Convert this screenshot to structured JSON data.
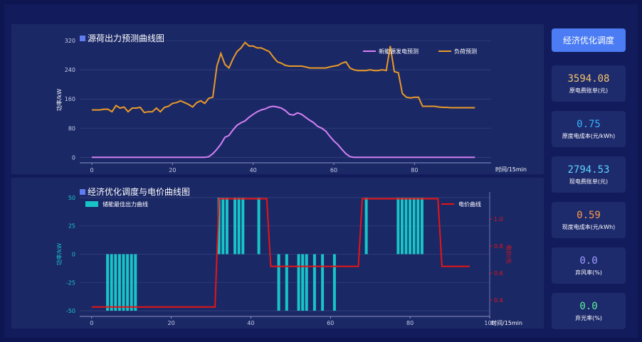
{
  "chart_data": [
    {
      "type": "line",
      "title": "源荷出力预测曲线图",
      "xlabel": "时间/15min",
      "ylabel": "功率/kW",
      "xlim": [
        -3,
        99
      ],
      "ylim": [
        -15,
        330
      ],
      "xticks": [
        0,
        20,
        40,
        60,
        80
      ],
      "yticks": [
        0,
        80,
        160,
        240,
        320
      ],
      "grid": true,
      "legend_position": "top-right",
      "series": [
        {
          "name": "新能源发电预测",
          "color": "#d580f5",
          "values": [
            0,
            0,
            0,
            0,
            0,
            0,
            0,
            0,
            0,
            0,
            0,
            0,
            0,
            0,
            0,
            0,
            0,
            0,
            0,
            0,
            0,
            0,
            0,
            0,
            0,
            0,
            0,
            0,
            0,
            2,
            10,
            22,
            36,
            55,
            60,
            75,
            88,
            95,
            100,
            110,
            118,
            125,
            130,
            133,
            138,
            140,
            138,
            135,
            128,
            118,
            116,
            122,
            118,
            110,
            102,
            95,
            85,
            80,
            72,
            58,
            45,
            35,
            22,
            10,
            2,
            0,
            0,
            0,
            0,
            0,
            0,
            0,
            0,
            0,
            0,
            0,
            0,
            0,
            0,
            0,
            0,
            0,
            0,
            0,
            0,
            0,
            0,
            0,
            0,
            0,
            0,
            0,
            0,
            0,
            0,
            0
          ]
        },
        {
          "name": "负荷预测",
          "color": "#ea9a27",
          "values": [
            130,
            130,
            130,
            132,
            132,
            125,
            142,
            135,
            138,
            125,
            135,
            135,
            137,
            123,
            125,
            125,
            135,
            125,
            137,
            140,
            148,
            150,
            155,
            150,
            145,
            138,
            150,
            155,
            148,
            162,
            165,
            250,
            285,
            255,
            245,
            270,
            290,
            300,
            315,
            305,
            305,
            300,
            300,
            295,
            290,
            275,
            262,
            258,
            252,
            250,
            250,
            250,
            250,
            248,
            245,
            245,
            245,
            245,
            245,
            248,
            250,
            252,
            258,
            262,
            245,
            240,
            238,
            238,
            238,
            240,
            238,
            238,
            240,
            238,
            305,
            235,
            232,
            175,
            165,
            163,
            165,
            165,
            140,
            140,
            140,
            140,
            138,
            137,
            137,
            136,
            136,
            136,
            136,
            136,
            136,
            136
          ]
        }
      ]
    },
    {
      "type": "bar",
      "title": "经济优化调度与电价曲线图",
      "xlabel": "时间/15min",
      "ylabel": "功率/kW",
      "y2label": "电价/元",
      "xlim": [
        -3,
        100
      ],
      "ylim": [
        -55,
        55
      ],
      "y2lim": [
        0.28,
        1.2
      ],
      "xticks": [
        0,
        20,
        40,
        60,
        80,
        100
      ],
      "yticks": [
        -50,
        -25,
        0,
        25,
        50
      ],
      "y2ticks": [
        0.4,
        0.6,
        0.8,
        1.0
      ],
      "grid": true,
      "legend_position": "top",
      "series": [
        {
          "name": "储能最佳出力曲线",
          "kind": "bar",
          "color": "#17c5c7",
          "values": [
            0,
            0,
            0,
            0,
            -50,
            -50,
            -50,
            -50,
            -50,
            -50,
            -50,
            -50,
            0,
            0,
            0,
            0,
            0,
            0,
            0,
            0,
            0,
            0,
            0,
            0,
            0,
            0,
            0,
            0,
            0,
            0,
            0,
            0,
            50,
            50,
            50,
            0,
            50,
            50,
            50,
            0,
            0,
            0,
            50,
            0,
            0,
            0,
            0,
            -50,
            0,
            -50,
            0,
            0,
            -50,
            -50,
            -50,
            0,
            -50,
            0,
            -50,
            0,
            0,
            -50,
            0,
            0,
            0,
            0,
            0,
            0,
            0,
            50,
            0,
            0,
            0,
            0,
            0,
            0,
            0,
            50,
            50,
            50,
            50,
            50,
            50,
            50,
            0,
            0,
            0,
            0,
            0,
            0,
            0,
            0,
            0,
            0,
            0,
            0
          ]
        },
        {
          "name": "电价曲线",
          "kind": "line",
          "axis": "right",
          "color": "#e81414",
          "x": [
            0,
            31,
            32,
            44,
            45,
            67,
            68,
            87,
            88,
            95
          ],
          "values": [
            0.35,
            0.35,
            1.15,
            1.15,
            0.65,
            0.65,
            1.15,
            1.15,
            0.65,
            0.65
          ]
        }
      ]
    }
  ],
  "sidebar": {
    "button_label": "经济优化调度",
    "cards": [
      {
        "value": "3594.08",
        "label": "原电费账单(元)",
        "color": "#f2c46b"
      },
      {
        "value": "0.75",
        "label": "原度电成本(元/kWh)",
        "color": "#3ab0ff"
      },
      {
        "value": "2794.53",
        "label": "现电费账单(元)",
        "color": "#5fd2ff"
      },
      {
        "value": "0.59",
        "label": "现度电成本(元/kWh)",
        "color": "#ff9c4a"
      },
      {
        "value": "0.0",
        "label": "弃风率(%)",
        "color": "#a29cff"
      },
      {
        "value": "0.0",
        "label": "弃光率(%)",
        "color": "#5ff29c"
      }
    ]
  }
}
